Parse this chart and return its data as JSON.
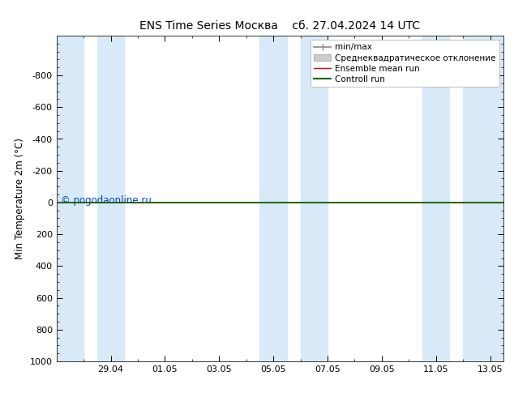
{
  "title_left": "ENS Time Series Москва",
  "title_right": "сб. 27.04.2024 14 UTC",
  "ylabel": "Min Temperature 2m (°C)",
  "ylim_bottom": 1000,
  "ylim_top": -1050,
  "yticks": [
    -800,
    -600,
    -400,
    -200,
    0,
    200,
    400,
    600,
    800,
    1000
  ],
  "xlim": [
    0,
    16.5
  ],
  "x_tick_labels": [
    "29.04",
    "01.05",
    "03.05",
    "05.05",
    "07.05",
    "09.05",
    "11.05",
    "13.05"
  ],
  "x_tick_positions": [
    2,
    4,
    6,
    8,
    10,
    12,
    14,
    16
  ],
  "shaded_bands": [
    [
      0,
      1.0
    ],
    [
      1.5,
      2.5
    ],
    [
      7.5,
      8.5
    ],
    [
      9.0,
      10.0
    ],
    [
      13.5,
      14.5
    ],
    [
      15.0,
      16.5
    ]
  ],
  "band_color": "#d8eaf7",
  "line_color_red": "#dd0000",
  "line_color_green": "#006600",
  "legend_items": [
    {
      "label": "min/max",
      "color": "#888888",
      "lw": 1.2
    },
    {
      "label": "Среднеквадратическое отклонение",
      "color": "#cccccc",
      "lw": 5
    },
    {
      "label": "Ensemble mean run",
      "color": "#dd0000",
      "lw": 1.0
    },
    {
      "label": "Controll run",
      "color": "#006600",
      "lw": 1.5
    }
  ],
  "watermark": "© pogodaonline.ru",
  "watermark_color": "#0044cc",
  "background_color": "#ffffff",
  "tick_color": "#000000",
  "fig_width": 6.34,
  "fig_height": 4.9,
  "dpi": 100
}
